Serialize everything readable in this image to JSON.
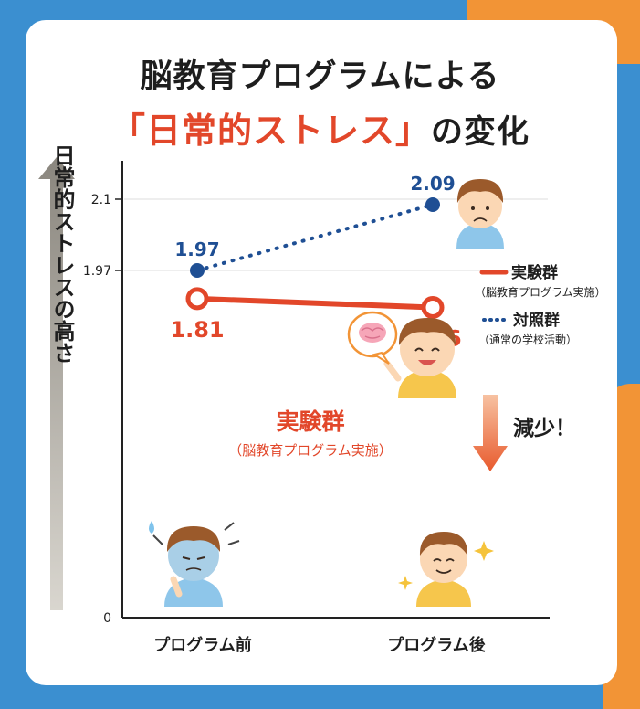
{
  "title": {
    "line1": "脳教育プログラムによる",
    "line2_highlight": "「日常的ストレス」",
    "line2_rest": "の変化"
  },
  "colors": {
    "experimental": "#e2472a",
    "control": "#1f4f94",
    "accent_orange": "#f29436",
    "background_blue": "#3b8fd0"
  },
  "icons": [
    "brain-icon",
    "sparkle-icon",
    "sweat-lines-icon"
  ],
  "chart_data": {
    "type": "line",
    "categories": [
      "プログラム前",
      "プログラム後"
    ],
    "ylabel": "日常的ストレスの高さ",
    "yticks": [
      {
        "value": 0,
        "label": "0"
      },
      {
        "value": 1.97,
        "label": "1.97"
      },
      {
        "value": 2.1,
        "label": "2.1"
      }
    ],
    "series": [
      {
        "key": "experimental",
        "name": "実験群",
        "subname": "（脳教育プログラム実施）",
        "style": "solid",
        "values": [
          1.81,
          1.76
        ],
        "value_labels": [
          "1.81",
          "1.76"
        ]
      },
      {
        "key": "control",
        "name": "対照群",
        "subname": "（通常の学校活動）",
        "style": "dotted",
        "values": [
          1.97,
          2.09
        ],
        "value_labels": [
          "1.97",
          "2.09"
        ]
      }
    ],
    "annotations": {
      "series_label": "実験群",
      "series_sublabel": "（脳教育プログラム実施）",
      "decrease_label": "減少！"
    },
    "legend_position": "right"
  }
}
